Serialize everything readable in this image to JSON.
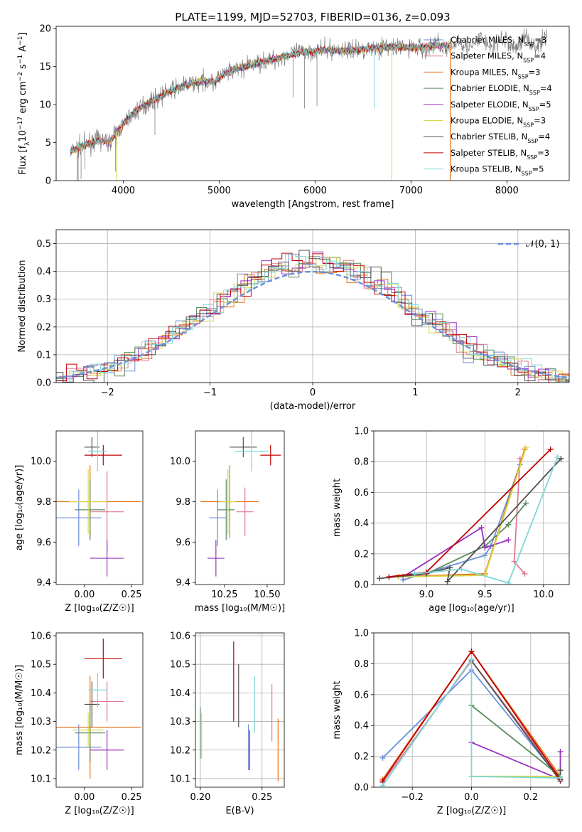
{
  "figure_title": "PLATE=1199, MJD=52703, FIBERID=0136, z=0.093",
  "model_names": [
    "Chabrier MILES",
    "Salpeter MILES",
    "Kroupa MILES",
    "Chabrier ELODIE",
    "Salpeter ELODIE",
    "Kroupa ELODIE",
    "Chabrier STELIB",
    "Salpeter STELIB",
    "Kroupa STELIB"
  ],
  "model_colors": [
    "#6a8fd8",
    "#e07b91",
    "#e8731c",
    "#5b8a5f",
    "#9b30c0",
    "#d8d84a",
    "#505050",
    "#c00000",
    "#7fd6d8"
  ],
  "chart_data": [
    {
      "id": "spectrum",
      "type": "line",
      "title": "PLATE=1199, MJD=52703, FIBERID=0136, z=0.093",
      "xlabel": "wavelength [Angstrom, rest frame]",
      "ylabel_parts": [
        "Flux [f",
        "λ",
        "10",
        "−17",
        " erg cm",
        "−2",
        " s",
        "−1",
        " A",
        "−1",
        "]"
      ],
      "xlim": [
        3300,
        8650
      ],
      "ylim": [
        0,
        20.3
      ],
      "xticks": [
        4000,
        5000,
        6000,
        7000,
        8000
      ],
      "yticks": [
        0,
        5,
        10,
        15,
        20
      ],
      "data_color": "#808080",
      "spectrum_anchors": [
        [
          3450,
          3.8
        ],
        [
          3550,
          4.5
        ],
        [
          3650,
          4.9
        ],
        [
          3750,
          5.4
        ],
        [
          3850,
          5.0
        ],
        [
          3950,
          6.6
        ],
        [
          4050,
          8.2
        ],
        [
          4150,
          9.3
        ],
        [
          4250,
          10.2
        ],
        [
          4350,
          10.8
        ],
        [
          4450,
          11.6
        ],
        [
          4550,
          12.1
        ],
        [
          4650,
          12.5
        ],
        [
          4750,
          12.9
        ],
        [
          4850,
          13.1
        ],
        [
          4950,
          13.0
        ],
        [
          5050,
          14.0
        ],
        [
          5150,
          14.5
        ],
        [
          5250,
          14.9
        ],
        [
          5350,
          15.3
        ],
        [
          5450,
          15.6
        ],
        [
          5550,
          15.9
        ],
        [
          5650,
          16.3
        ],
        [
          5750,
          16.6
        ],
        [
          5850,
          16.9
        ],
        [
          5950,
          17.0
        ],
        [
          6050,
          17.1
        ],
        [
          6150,
          17.2
        ],
        [
          6250,
          17.1
        ],
        [
          6350,
          17.2
        ],
        [
          6450,
          17.2
        ],
        [
          6550,
          17.4
        ],
        [
          6650,
          17.5
        ],
        [
          6750,
          17.6
        ],
        [
          6850,
          17.6
        ],
        [
          6950,
          17.5
        ],
        [
          7050,
          17.5
        ],
        [
          7150,
          17.6
        ],
        [
          7250,
          17.7
        ],
        [
          7400,
          17.8
        ],
        [
          7600,
          18.0
        ],
        [
          7800,
          18.1
        ],
        [
          8000,
          18.0
        ],
        [
          8200,
          18.2
        ],
        [
          8400,
          18.3
        ]
      ],
      "legend": [
        {
          "label": "Chabrier MILES",
          "nssp": "3"
        },
        {
          "label": "Salpeter MILES",
          "nssp": "4"
        },
        {
          "label": "Kroupa MILES",
          "nssp": "3"
        },
        {
          "label": "Chabrier ELODIE",
          "nssp": "4"
        },
        {
          "label": "Salpeter ELODIE",
          "nssp": "5"
        },
        {
          "label": "Kroupa ELODIE",
          "nssp": "3"
        },
        {
          "label": "Chabrier STELIB",
          "nssp": "4"
        },
        {
          "label": "Salpeter STELIB",
          "nssp": "3"
        },
        {
          "label": "Kroupa STELIB",
          "nssp": "5"
        }
      ],
      "legend_nssp_prefix": "N",
      "legend_nssp_sub": "SSP",
      "legend_placement": "top-right",
      "grid": false
    },
    {
      "id": "residuals",
      "type": "histogram",
      "xlabel": "(data-model)/error",
      "ylabel": "Normed distribution",
      "xlim": [
        -2.5,
        2.5
      ],
      "ylim": [
        0,
        0.55
      ],
      "xticks": [
        -2,
        -1,
        0,
        1,
        2
      ],
      "xtick_labels": [
        "−2",
        "−1",
        "0",
        "1",
        "2"
      ],
      "yticks": [
        0,
        0.1,
        0.2,
        0.3,
        0.4,
        0.5
      ],
      "ytick_labels": [
        "0.0",
        "0.1",
        "0.2",
        "0.3",
        "0.4",
        "0.5"
      ],
      "bin_width": 0.1,
      "reference_curve": {
        "label": "𝒩(0, 1)",
        "mean": 0,
        "sigma": 1,
        "color": "#6a8fd8",
        "style": "dashed"
      },
      "legend_placement": "top-right",
      "grid": true
    },
    {
      "id": "age_vs_Z",
      "type": "errorbar",
      "xlabel": "Z [log₁₀(Z/Z☉)]",
      "ylabel": "age  [log₁₀(age/yr)]",
      "xlim": [
        -0.15,
        0.31
      ],
      "ylim": [
        9.39,
        10.15
      ],
      "xticks": [
        0.0,
        0.25
      ],
      "xtick_labels": [
        "0.00",
        "0.25"
      ],
      "yticks": [
        9.4,
        9.6,
        9.8,
        10.0
      ],
      "ytick_labels": [
        "9.4",
        "9.6",
        "9.8",
        "10.0"
      ],
      "grid": false,
      "points": [
        {
          "model": 0,
          "x": -0.03,
          "xerr": 0.12,
          "y": 9.72,
          "yerr": 0.14
        },
        {
          "model": 1,
          "x": 0.12,
          "xerr": 0.09,
          "y": 9.75,
          "yerr": 0.2
        },
        {
          "model": 2,
          "x": 0.03,
          "xerr": 0.27,
          "y": 9.8,
          "yerr": 0.18
        },
        {
          "model": 3,
          "x": 0.03,
          "xerr": 0.08,
          "y": 9.76,
          "yerr": 0.15
        },
        {
          "model": 4,
          "x": 0.12,
          "xerr": 0.09,
          "y": 9.52,
          "yerr": 0.09
        },
        {
          "model": 5,
          "x": 0.02,
          "xerr": 0.1,
          "y": 9.8,
          "yerr": 0.16
        },
        {
          "model": 6,
          "x": 0.04,
          "xerr": 0.04,
          "y": 10.07,
          "yerr": 0.05
        },
        {
          "model": 7,
          "x": 0.1,
          "xerr": 0.1,
          "y": 10.03,
          "yerr": 0.05
        },
        {
          "model": 8,
          "x": 0.07,
          "xerr": 0.05,
          "y": 10.05,
          "yerr": 0.1
        }
      ]
    },
    {
      "id": "age_vs_mass",
      "type": "errorbar",
      "xlabel": "mass [log₁₀(M/M☉)]",
      "ylabel": "",
      "xlim": [
        10.08,
        10.6
      ],
      "ylim": [
        9.39,
        10.15
      ],
      "xticks": [
        10.25,
        10.5
      ],
      "xtick_labels": [
        "10.25",
        "10.50"
      ],
      "yticks": [
        9.4,
        9.6,
        9.8,
        10.0
      ],
      "ytick_labels": [
        "9.4",
        "9.6",
        "9.8",
        "10.0"
      ],
      "grid": false,
      "points": [
        {
          "model": 0,
          "x": 10.21,
          "xerr": 0.05,
          "y": 9.72,
          "yerr": 0.14
        },
        {
          "model": 1,
          "x": 10.37,
          "xerr": 0.05,
          "y": 9.75,
          "yerr": 0.12
        },
        {
          "model": 2,
          "x": 10.28,
          "xerr": 0.17,
          "y": 9.8,
          "yerr": 0.18
        },
        {
          "model": 3,
          "x": 10.26,
          "xerr": 0.05,
          "y": 9.76,
          "yerr": 0.15
        },
        {
          "model": 4,
          "x": 10.2,
          "xerr": 0.05,
          "y": 9.52,
          "yerr": 0.09
        },
        {
          "model": 5,
          "x": 10.27,
          "xerr": 0.05,
          "y": 9.8,
          "yerr": 0.16
        },
        {
          "model": 6,
          "x": 10.36,
          "xerr": 0.08,
          "y": 10.07,
          "yerr": 0.05
        },
        {
          "model": 7,
          "x": 10.52,
          "xerr": 0.06,
          "y": 10.03,
          "yerr": 0.05
        },
        {
          "model": 8,
          "x": 10.41,
          "xerr": 0.1,
          "y": 10.05,
          "yerr": 0.1
        }
      ]
    },
    {
      "id": "weight_vs_age",
      "type": "line",
      "xlabel": "age  [log₁₀(age/yr)]",
      "ylabel": "mass weight",
      "xlim": [
        8.55,
        10.22
      ],
      "ylim": [
        0,
        1
      ],
      "xticks": [
        9.0,
        9.5,
        10.0
      ],
      "xtick_labels": [
        "9.0",
        "9.5",
        "10.0"
      ],
      "yticks": [
        0,
        0.2,
        0.4,
        0.6,
        0.8,
        1.0
      ],
      "ytick_labels": [
        "0.0",
        "0.2",
        "0.4",
        "0.6",
        "0.8",
        "1.0"
      ],
      "grid": true,
      "series": [
        {
          "model": 0,
          "x": [
            8.8,
            9.5,
            9.55,
            9.8
          ],
          "y": [
            0.03,
            0.19,
            0.25,
            0.78
          ]
        },
        {
          "model": 1,
          "x": [
            9.8,
            9.75,
            9.84
          ],
          "y": [
            0.82,
            0.15,
            0.07
          ]
        },
        {
          "model": 2,
          "x": [
            8.76,
            9.5,
            9.84
          ],
          "y": [
            0.05,
            0.07,
            0.88
          ]
        },
        {
          "model": 3,
          "x": [
            9.0,
            9.5,
            9.7,
            9.85
          ],
          "y": [
            0.07,
            0.25,
            0.39,
            0.53
          ]
        },
        {
          "model": 4,
          "x": [
            8.8,
            9.47,
            9.5,
            9.7
          ],
          "y": [
            0.05,
            0.37,
            0.24,
            0.29
          ]
        },
        {
          "model": 5,
          "x": [
            8.76,
            9.5,
            9.85
          ],
          "y": [
            0.05,
            0.06,
            0.89
          ]
        },
        {
          "model": 6,
          "x": [
            8.6,
            9.0,
            9.2,
            9.18,
            10.15
          ],
          "y": [
            0.04,
            0.07,
            0.11,
            0.02,
            0.82
          ]
        },
        {
          "model": 7,
          "x": [
            8.68,
            9.0,
            10.06
          ],
          "y": [
            0.05,
            0.08,
            0.88
          ]
        },
        {
          "model": 8,
          "x": [
            8.9,
            9.3,
            9.7,
            10.12
          ],
          "y": [
            0.07,
            0.1,
            0.01,
            0.83
          ]
        }
      ]
    },
    {
      "id": "mass_vs_Z",
      "type": "errorbar",
      "xlabel": "Z [log₁₀(Z/Z☉)]",
      "ylabel": "mass [log₁₀(M/M☉)]",
      "xlim": [
        -0.15,
        0.31
      ],
      "ylim": [
        10.07,
        10.61
      ],
      "xticks": [
        0.0,
        0.25
      ],
      "xtick_labels": [
        "0.00",
        "0.25"
      ],
      "yticks": [
        10.1,
        10.2,
        10.3,
        10.4,
        10.5,
        10.6
      ],
      "ytick_labels": [
        "10.1",
        "10.2",
        "10.3",
        "10.4",
        "10.5",
        "10.6"
      ],
      "grid": false,
      "points": [
        {
          "model": 0,
          "x": -0.03,
          "xerr": 0.12,
          "y": 10.21,
          "yerr": 0.08
        },
        {
          "model": 1,
          "x": 0.12,
          "xerr": 0.09,
          "y": 10.37,
          "yerr": 0.07
        },
        {
          "model": 2,
          "x": 0.03,
          "xerr": 0.27,
          "y": 10.28,
          "yerr": 0.18
        },
        {
          "model": 3,
          "x": 0.03,
          "xerr": 0.08,
          "y": 10.26,
          "yerr": 0.1
        },
        {
          "model": 4,
          "x": 0.12,
          "xerr": 0.09,
          "y": 10.2,
          "yerr": 0.07
        },
        {
          "model": 5,
          "x": 0.02,
          "xerr": 0.08,
          "y": 10.27,
          "yerr": 0.06
        },
        {
          "model": 6,
          "x": 0.04,
          "xerr": 0.04,
          "y": 10.36,
          "yerr": 0.08
        },
        {
          "model": 7,
          "x": 0.1,
          "xerr": 0.1,
          "y": 10.52,
          "yerr": 0.07
        },
        {
          "model": 8,
          "x": 0.07,
          "xerr": 0.05,
          "y": 10.41,
          "yerr": 0.06
        }
      ]
    },
    {
      "id": "mass_vs_ebv",
      "type": "errorbar",
      "xlabel": "E(B-V)",
      "ylabel": "",
      "xlim": [
        0.196,
        0.268
      ],
      "ylim": [
        10.07,
        10.61
      ],
      "xticks": [
        0.2,
        0.25
      ],
      "xtick_labels": [
        "0.20",
        "0.25"
      ],
      "yticks": [
        10.1,
        10.2,
        10.3,
        10.4,
        10.5,
        10.6
      ],
      "ytick_labels": [
        "10.1",
        "10.2",
        "10.3",
        "10.4",
        "10.5",
        "10.6"
      ],
      "grid": true,
      "points": [
        {
          "model": 0,
          "x": 0.239,
          "y": 10.21,
          "yerr": 0.08
        },
        {
          "model": 1,
          "x": 0.258,
          "y": 10.33,
          "yerr": 0.1
        },
        {
          "model": 2,
          "x": 0.263,
          "y": 10.2,
          "yerr": 0.11
        },
        {
          "model": 3,
          "x": 0.2,
          "y": 10.26,
          "yerr": 0.09
        },
        {
          "model": 4,
          "x": 0.24,
          "y": 10.2,
          "yerr": 0.07
        },
        {
          "model": 5,
          "x": 0.201,
          "y": 10.25,
          "yerr": 0.08
        },
        {
          "model": 6,
          "x": 0.231,
          "y": 10.39,
          "yerr": 0.11
        },
        {
          "model": 7,
          "x": 0.227,
          "y": 10.44,
          "yerr": 0.14
        },
        {
          "model": 8,
          "x": 0.244,
          "y": 10.36,
          "yerr": 0.1
        }
      ]
    },
    {
      "id": "weight_vs_Z",
      "type": "line",
      "xlabel": "Z [log₁₀(Z/Z☉)]",
      "ylabel": "mass weight",
      "xlim": [
        -0.33,
        0.33
      ],
      "ylim": [
        0,
        1
      ],
      "xticks": [
        -0.2,
        0.0,
        0.2
      ],
      "xtick_labels": [
        "−0.2",
        "0.0",
        "0.2"
      ],
      "yticks": [
        0,
        0.2,
        0.4,
        0.6,
        0.8,
        1.0
      ],
      "ytick_labels": [
        "0.0",
        "0.2",
        "0.4",
        "0.6",
        "0.8",
        "1.0"
      ],
      "grid": true,
      "series": [
        {
          "model": 0,
          "x": [
            -0.3,
            0.0,
            0.3
          ],
          "y": [
            0.19,
            0.76,
            0.05
          ]
        },
        {
          "model": 1,
          "x": [
            -0.3,
            0.0,
            0.3
          ],
          "y": [
            0.03,
            0.82,
            0.06
          ]
        },
        {
          "model": 2,
          "x": [
            -0.3,
            0.0,
            0.3
          ],
          "y": [
            0.05,
            0.88,
            0.07
          ]
        },
        {
          "model": 3,
          "x": [
            0.0,
            0.3
          ],
          "y": [
            0.53,
            0.07
          ]
        },
        {
          "model": 4,
          "x": [
            0.0,
            0.3,
            0.3
          ],
          "y": [
            0.29,
            0.05,
            0.23
          ]
        },
        {
          "model": 5,
          "x": [
            0.0,
            0.3
          ],
          "y": [
            0.07,
            0.07
          ]
        },
        {
          "model": 6,
          "x": [
            0.0,
            0.3,
            0.3
          ],
          "y": [
            0.82,
            0.04,
            0.11
          ]
        },
        {
          "model": 7,
          "x": [
            -0.3,
            0.0,
            0.3
          ],
          "y": [
            0.04,
            0.88,
            0.05
          ]
        },
        {
          "model": 8,
          "x": [
            -0.3,
            0.0,
            0.0,
            0.3
          ],
          "y": [
            0.01,
            0.83,
            0.07,
            0.06
          ]
        }
      ]
    }
  ]
}
